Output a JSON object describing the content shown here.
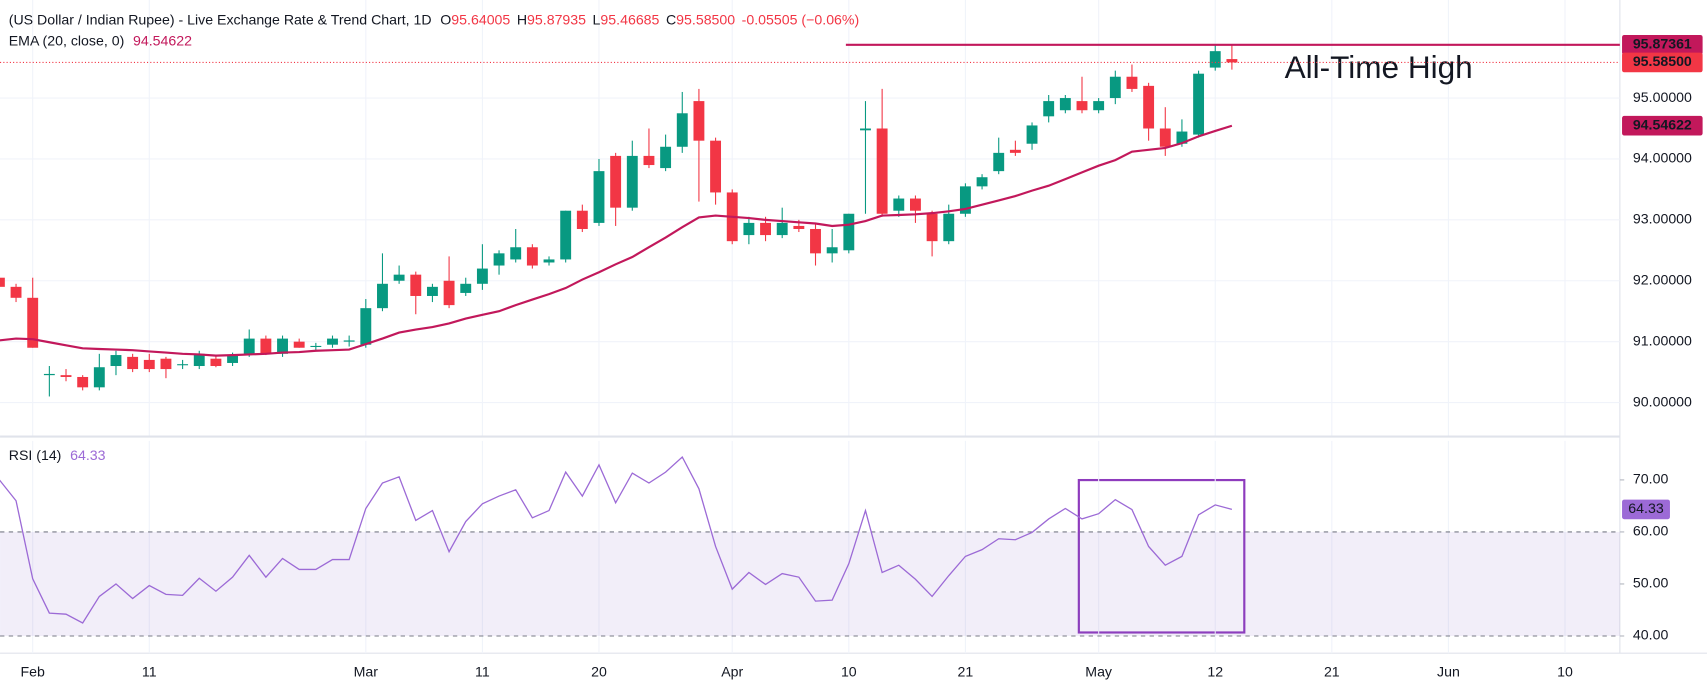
{
  "header": {
    "title": "(US Dollar / Indian Rupee) - Live Exchange Rate & Trend Chart, 1D",
    "quote": [
      {
        "key": "O",
        "value": "95.64005"
      },
      {
        "key": "H",
        "value": "95.87935"
      },
      {
        "key": "L",
        "value": "95.46685"
      },
      {
        "key": "C",
        "value": "95.58500"
      }
    ],
    "change": "-0.05505 (−0.06%)"
  },
  "chart_data": {
    "type": "candlestick",
    "up_color": "#089981",
    "down_color": "#f23645",
    "categories": [
      null,
      null,
      "Feb",
      null,
      null,
      null,
      null,
      null,
      null,
      "11",
      null,
      null,
      null,
      null,
      null,
      null,
      null,
      null,
      null,
      null,
      null,
      null,
      "Mar",
      null,
      null,
      null,
      null,
      null,
      null,
      "11",
      null,
      null,
      null,
      null,
      null,
      null,
      "20",
      null,
      null,
      null,
      null,
      null,
      null,
      null,
      "Apr",
      null,
      null,
      null,
      null,
      null,
      null,
      "10",
      null,
      null,
      null,
      null,
      null,
      null,
      "21",
      null,
      null,
      null,
      null,
      null,
      null,
      null,
      "May",
      null,
      null,
      null,
      null,
      null,
      null,
      "12",
      null,
      null,
      null,
      null,
      null,
      null,
      "21",
      null,
      null,
      null,
      null,
      null,
      null,
      "Jun",
      null,
      null,
      null,
      null,
      null,
      null,
      "10",
      null,
      null,
      null
    ],
    "open": [
      92.05,
      91.9,
      91.72,
      90.45,
      90.45,
      90.42,
      90.25,
      90.6,
      90.75,
      90.7,
      90.72,
      90.62,
      90.6,
      90.72,
      90.65,
      90.8,
      91.05,
      90.8,
      91.0,
      90.92,
      90.95,
      91.0,
      90.95,
      91.55,
      92.0,
      92.1,
      91.75,
      92.0,
      91.8,
      91.95,
      92.25,
      92.35,
      92.55,
      92.3,
      92.35,
      93.15,
      92.95,
      94.05,
      93.2,
      94.05,
      93.85,
      94.2,
      94.95,
      94.3,
      93.45,
      92.75,
      92.95,
      92.75,
      92.9,
      92.85,
      92.45,
      92.5,
      94.47,
      94.5,
      93.15,
      93.35,
      93.1,
      92.65,
      93.1,
      93.55,
      93.8,
      94.15,
      94.25,
      94.7,
      94.8,
      94.95,
      94.8,
      95.0,
      95.35,
      95.2,
      94.5,
      94.25,
      94.4,
      95.5,
      95.64005,
      null,
      null,
      null,
      null,
      null,
      null,
      null,
      null,
      null,
      null,
      null,
      null,
      null,
      null,
      null,
      null,
      null,
      null,
      null,
      null,
      null,
      null,
      null
    ],
    "high": [
      92.1,
      91.95,
      92.05,
      90.6,
      90.55,
      90.45,
      90.8,
      90.85,
      90.8,
      90.8,
      90.75,
      90.7,
      90.85,
      90.78,
      90.82,
      91.2,
      91.1,
      91.1,
      91.05,
      90.98,
      91.1,
      91.1,
      91.7,
      92.45,
      92.25,
      92.15,
      91.95,
      92.4,
      92.05,
      92.6,
      92.5,
      92.85,
      92.6,
      92.4,
      93.15,
      93.25,
      94.0,
      94.1,
      94.3,
      94.5,
      94.4,
      95.1,
      95.15,
      94.35,
      93.5,
      93.05,
      93.05,
      93.2,
      93.0,
      92.95,
      92.85,
      93.1,
      94.95,
      95.15,
      93.4,
      93.4,
      93.15,
      93.25,
      93.6,
      93.75,
      94.35,
      94.3,
      94.6,
      95.05,
      95.05,
      95.35,
      95.0,
      95.45,
      95.55,
      95.25,
      94.85,
      94.65,
      95.45,
      95.87,
      95.87935,
      null,
      null,
      null,
      null,
      null,
      null,
      null,
      null,
      null,
      null,
      null,
      null,
      null,
      null,
      null,
      null,
      null,
      null,
      null,
      null,
      null,
      null,
      null
    ],
    "low": [
      91.85,
      91.65,
      90.9,
      90.1,
      90.35,
      90.2,
      90.2,
      90.45,
      90.5,
      90.5,
      90.4,
      90.55,
      90.55,
      90.58,
      90.6,
      90.75,
      90.78,
      90.75,
      90.9,
      90.85,
      90.9,
      90.92,
      90.9,
      91.5,
      91.95,
      91.45,
      91.65,
      91.55,
      91.75,
      91.85,
      92.1,
      92.3,
      92.2,
      92.25,
      92.3,
      92.8,
      92.9,
      92.9,
      93.15,
      93.85,
      93.8,
      94.1,
      93.3,
      93.25,
      92.6,
      92.6,
      92.65,
      92.7,
      92.8,
      92.25,
      92.3,
      92.45,
      93.1,
      93.05,
      93.05,
      92.95,
      92.4,
      92.6,
      93.05,
      93.5,
      93.75,
      94.05,
      94.15,
      94.6,
      94.75,
      94.75,
      94.75,
      94.9,
      95.1,
      94.3,
      94.05,
      94.2,
      94.35,
      95.45,
      95.46685,
      null,
      null,
      null,
      null,
      null,
      null,
      null,
      null,
      null,
      null,
      null,
      null,
      null,
      null,
      null,
      null,
      null,
      null,
      null,
      null,
      null,
      null,
      null
    ],
    "close": [
      91.9,
      91.72,
      90.9,
      90.47,
      90.42,
      90.25,
      90.58,
      90.78,
      90.55,
      90.55,
      90.55,
      90.63,
      90.8,
      90.6,
      90.78,
      91.05,
      90.8,
      91.05,
      90.9,
      90.93,
      91.05,
      91.02,
      91.55,
      91.95,
      92.1,
      91.75,
      91.9,
      91.6,
      91.95,
      92.2,
      92.45,
      92.55,
      92.25,
      92.35,
      93.15,
      92.85,
      93.8,
      93.2,
      94.05,
      93.9,
      94.2,
      94.75,
      94.3,
      93.45,
      92.65,
      92.95,
      92.75,
      92.95,
      92.85,
      92.45,
      92.55,
      93.1,
      94.5,
      93.1,
      93.35,
      93.15,
      92.65,
      93.1,
      93.55,
      93.7,
      94.1,
      94.1,
      94.55,
      94.95,
      95.0,
      94.8,
      94.95,
      95.35,
      95.15,
      94.5,
      94.2,
      94.45,
      95.4,
      95.77,
      95.585,
      null,
      null,
      null,
      null,
      null,
      null,
      null,
      null,
      null,
      null,
      null,
      null,
      null,
      null,
      null,
      null,
      null,
      null,
      null,
      null,
      null,
      null,
      null
    ],
    "close_label": "95.58500",
    "ylim": [
      89.46,
      96.61
    ],
    "yticks": [
      {
        "value": 90,
        "label": "90.00000"
      },
      {
        "value": 91,
        "label": "91.00000"
      },
      {
        "value": 92,
        "label": "92.00000"
      },
      {
        "value": 93,
        "label": "93.00000"
      },
      {
        "value": 94,
        "label": "94.00000"
      },
      {
        "value": 95,
        "label": "95.00000"
      }
    ],
    "grid": true,
    "series": [
      {
        "name": "EMA (20, close, 0)",
        "color": "#c2185b",
        "values": [
          91.02,
          91.05,
          91.04,
          90.99,
          90.94,
          90.89,
          90.88,
          90.87,
          90.86,
          90.84,
          90.82,
          90.8,
          90.79,
          90.77,
          90.78,
          90.79,
          90.8,
          90.82,
          90.83,
          90.85,
          90.86,
          90.87,
          90.96,
          91.05,
          91.15,
          91.2,
          91.24,
          91.3,
          91.38,
          91.44,
          91.5,
          91.6,
          91.69,
          91.78,
          91.88,
          92.02,
          92.14,
          92.27,
          92.39,
          92.55,
          92.71,
          92.88,
          93.04,
          93.07,
          93.05,
          93.03,
          93.0,
          92.98,
          92.96,
          92.94,
          92.9,
          92.92,
          92.98,
          93.07,
          93.08,
          93.09,
          93.11,
          93.14,
          93.18,
          93.25,
          93.32,
          93.39,
          93.48,
          93.56,
          93.67,
          93.78,
          93.89,
          93.98,
          94.12,
          94.15,
          94.18,
          94.26,
          94.37,
          94.46,
          94.54622,
          null,
          null,
          null,
          null,
          null,
          null,
          null,
          null,
          null,
          null,
          null,
          null,
          null,
          null,
          null,
          null,
          null,
          null,
          null,
          null,
          null,
          null,
          null
        ]
      }
    ],
    "annotation": {
      "text": "All-Time High",
      "value": 95.87361,
      "color": "#c2185b",
      "text_color": "#2962ff"
    },
    "indicator": {
      "type": "line",
      "name": "RSI (14)",
      "color": "#9c6ad6",
      "values": [
        70,
        66,
        51,
        44.4,
        44.2,
        42.5,
        47.6,
        50,
        47.2,
        49.7,
        48,
        47.8,
        51.1,
        48.6,
        51.3,
        55.5,
        51.3,
        54.9,
        52.8,
        52.8,
        54.7,
        54.7,
        64.5,
        69.4,
        70.6,
        62.2,
        64.1,
        56.2,
        62,
        65.4,
        66.9,
        68.1,
        62.7,
        64.1,
        71.5,
        66.9,
        72.9,
        65.6,
        71.3,
        69.4,
        71.5,
        74.4,
        68.3,
        57.2,
        49,
        52.2,
        49.9,
        52,
        51.3,
        46.7,
        46.9,
        53.9,
        64.1,
        52.2,
        53.6,
        50.9,
        47.6,
        51.6,
        55.3,
        56.6,
        58.7,
        58.5,
        59.9,
        62.5,
        64.5,
        62.5,
        63.5,
        66.2,
        64.3,
        57.2,
        53.6,
        55.3,
        63.3,
        65.2,
        64.33,
        null,
        null,
        null,
        null,
        null,
        null,
        null,
        null,
        null,
        null,
        null,
        null,
        null,
        null,
        null,
        null,
        null,
        null,
        null,
        null,
        null,
        null,
        null
      ],
      "ylim": [
        36.7,
        77.5
      ],
      "yticks": [
        {
          "value": 40,
          "label": "40.00"
        },
        {
          "value": 50,
          "label": "50.00"
        },
        {
          "value": 60,
          "label": "60.00"
        },
        {
          "value": 70,
          "label": "70.00"
        }
      ],
      "band": [
        40,
        60
      ],
      "band_color": "#7e57c2"
    }
  }
}
